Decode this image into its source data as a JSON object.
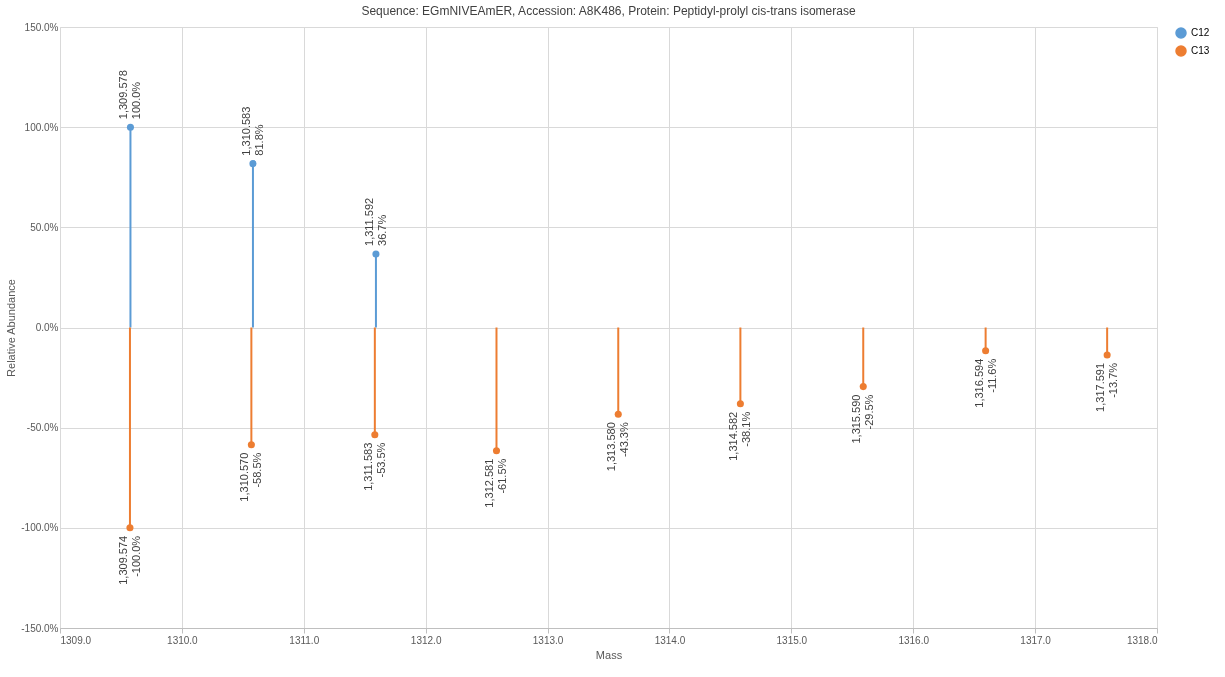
{
  "chart_data": {
    "type": "lollipop",
    "title": "Sequence: EGmNIVEAmER, Accession: A8K486, Protein: Peptidyl-prolyl cis-trans isomerase",
    "xlabel": "Mass",
    "ylabel": "Relative Abundance",
    "series": [
      {
        "name": "C12",
        "color": "#5b9bd5",
        "x": [
          1309.578,
          1310.583,
          1311.592
        ],
        "values": [
          100.0,
          81.8,
          36.7
        ],
        "value_labels": [
          "1,309.578\n100.0%",
          "1,310.583\n81.8%",
          "1,311.592\n36.7%"
        ]
      },
      {
        "name": "C13",
        "color": "#ed7d31",
        "x": [
          1309.574,
          1310.57,
          1311.583,
          1312.581,
          1313.58,
          1314.582,
          1315.59,
          1316.594,
          1317.591
        ],
        "values": [
          -100.0,
          -58.5,
          -53.5,
          -61.5,
          -43.3,
          -38.1,
          -29.5,
          -11.6,
          -13.7
        ],
        "value_labels": [
          "1,309.574\n-100.0%",
          "1,310.570\n-58.5%",
          "1,311.583\n-53.5%",
          "1,312.581\n-61.5%",
          "1,313.580\n-43.3%",
          "1,314.582\n-38.1%",
          "1,315.590\n-29.5%",
          "1,316.594\n-11.6%",
          "1,317.591\n-13.7%"
        ]
      }
    ],
    "xlim": [
      1309.0,
      1318.0
    ],
    "xticks": [
      {
        "value": 1309,
        "label": "1309.0"
      },
      {
        "value": 1310,
        "label": "1310.0"
      },
      {
        "value": 1311,
        "label": "1311.0"
      },
      {
        "value": 1312,
        "label": "1312.0"
      },
      {
        "value": 1313,
        "label": "1313.0"
      },
      {
        "value": 1314,
        "label": "1314.0"
      },
      {
        "value": 1315,
        "label": "1315.0"
      },
      {
        "value": 1316,
        "label": "1316.0"
      },
      {
        "value": 1317,
        "label": "1317.0"
      },
      {
        "value": 1318,
        "label": "1318.0"
      }
    ],
    "ylim": [
      -150,
      150
    ],
    "yticks": [
      {
        "value": -150,
        "label": "-150.0%"
      },
      {
        "value": -100,
        "label": "-100.0%"
      },
      {
        "value": -50,
        "label": "-50.0%"
      },
      {
        "value": 0,
        "label": "0.0%"
      },
      {
        "value": 50,
        "label": "50.0%"
      },
      {
        "value": 100,
        "label": "100.0%"
      },
      {
        "value": 150,
        "label": "150.0%"
      }
    ],
    "grid": true,
    "legend": "right",
    "marker": "circle"
  }
}
